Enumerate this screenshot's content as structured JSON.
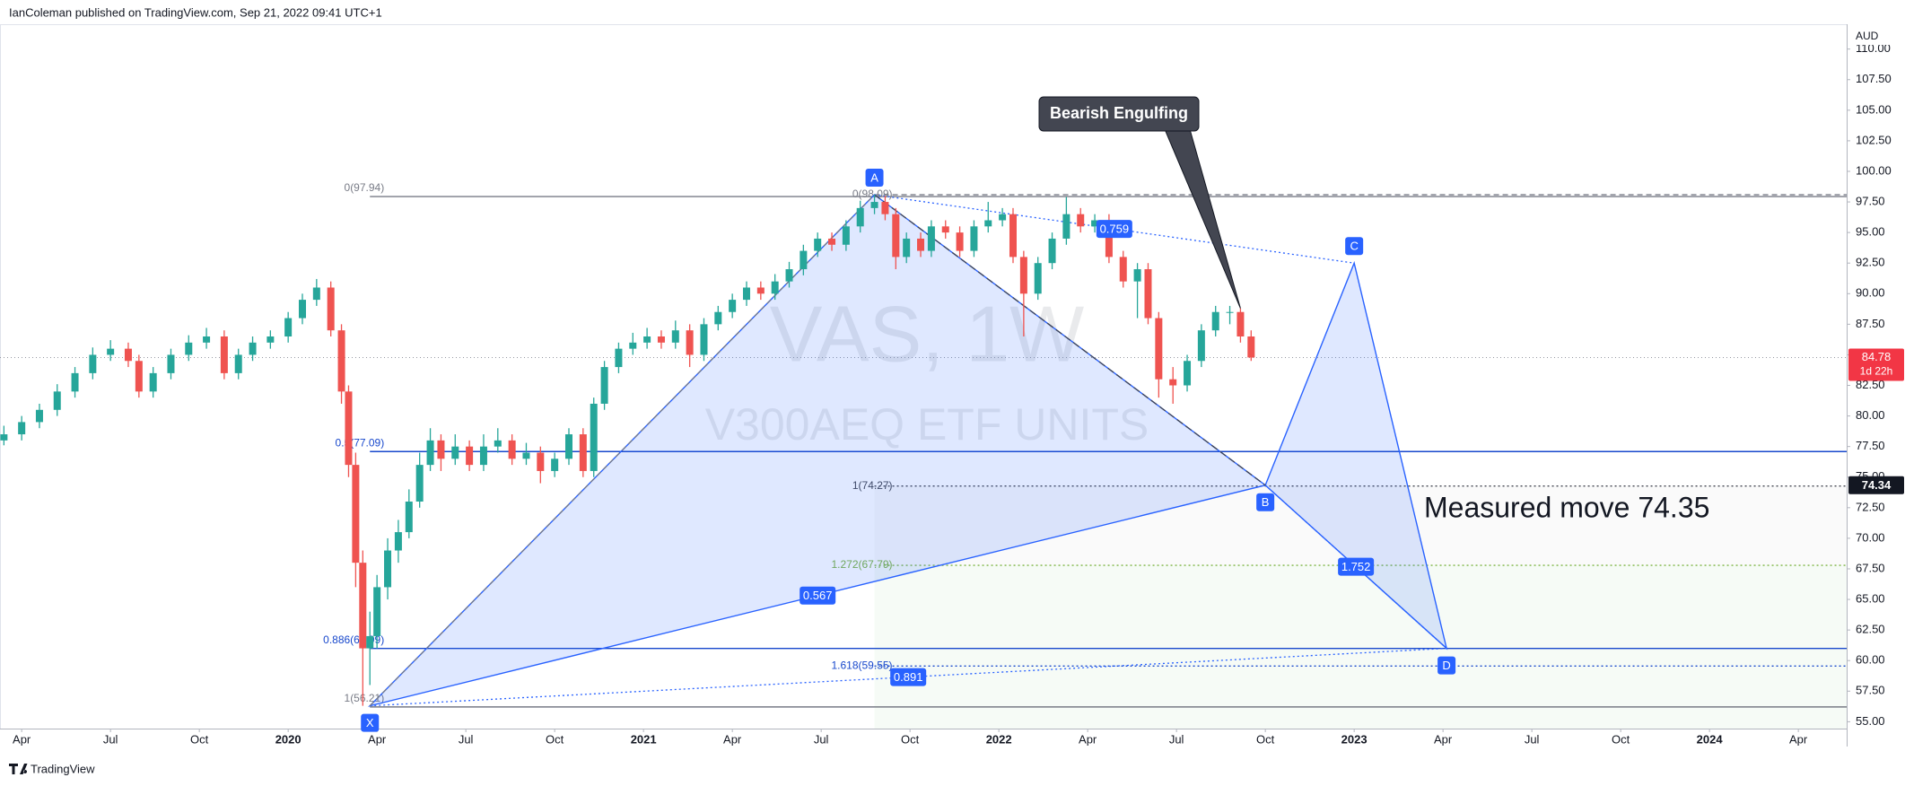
{
  "header": {
    "publisher": "IanColeman published on TradingView.com, Sep 21, 2022 09:41 UTC+1"
  },
  "footer": {
    "brand": "TradingView"
  },
  "chart_data": {
    "type": "candlestick",
    "currency": "AUD",
    "watermark": {
      "symbol": "VAS, 1W",
      "name": "V300AEQ ETF UNITS"
    },
    "colors": {
      "up": "#26a69a",
      "down": "#ef5350",
      "pattern": "#2962ff"
    },
    "grid": false,
    "candles": {
      "x": [
        2019.2,
        2019.25,
        2019.3,
        2019.35,
        2019.4,
        2019.45,
        2019.5,
        2019.55,
        2019.58,
        2019.62,
        2019.67,
        2019.72,
        2019.77,
        2019.82,
        2019.86,
        2019.9,
        2019.95,
        2020.0,
        2020.04,
        2020.08,
        2020.12,
        2020.15,
        2020.17,
        2020.19,
        2020.21,
        2020.23,
        2020.25,
        2020.28,
        2020.31,
        2020.34,
        2020.37,
        2020.4,
        2020.43,
        2020.47,
        2020.51,
        2020.55,
        2020.59,
        2020.63,
        2020.67,
        2020.71,
        2020.75,
        2020.79,
        2020.83,
        2020.86,
        2020.89,
        2020.93,
        2020.97,
        2021.01,
        2021.05,
        2021.09,
        2021.13,
        2021.17,
        2021.21,
        2021.25,
        2021.29,
        2021.33,
        2021.37,
        2021.41,
        2021.45,
        2021.49,
        2021.53,
        2021.57,
        2021.61,
        2021.65,
        2021.68,
        2021.71,
        2021.74,
        2021.78,
        2021.81,
        2021.85,
        2021.89,
        2021.93,
        2021.97,
        2022.01,
        2022.04,
        2022.07,
        2022.11,
        2022.15,
        2022.19,
        2022.23,
        2022.27,
        2022.31,
        2022.35,
        2022.39,
        2022.42,
        2022.45,
        2022.49,
        2022.53,
        2022.57,
        2022.61,
        2022.65,
        2022.68,
        2022.71
      ],
      "open": [
        78,
        78.5,
        79.5,
        80.5,
        82,
        83.5,
        85,
        85.5,
        84.5,
        82,
        83.5,
        85,
        86,
        86.5,
        83.5,
        85,
        86,
        86.5,
        88,
        89.5,
        90.5,
        87,
        82,
        76,
        68,
        61,
        62,
        66,
        69,
        70.5,
        73,
        76,
        78,
        76.5,
        77.5,
        76,
        77.5,
        78,
        76.5,
        77,
        75.5,
        76.5,
        78.5,
        75.5,
        81,
        84,
        85.5,
        86,
        86.5,
        86,
        87,
        85,
        87.5,
        88.5,
        89.5,
        90.5,
        90,
        91,
        92,
        93.5,
        94.5,
        94,
        95.5,
        97,
        97.5,
        96.5,
        93,
        94.5,
        93.5,
        95.5,
        95,
        93.5,
        95.5,
        96,
        96.5,
        93,
        90,
        92.5,
        94.5,
        96.5,
        95.5,
        96,
        93,
        91,
        92,
        88,
        83,
        82.5,
        84.5,
        87,
        88.5,
        88.5,
        86.5
      ],
      "high": [
        79.2,
        80,
        81,
        82.6,
        84,
        85.6,
        86.2,
        86,
        85,
        84,
        85.5,
        86.6,
        87.2,
        87,
        85.5,
        86.5,
        87,
        88.5,
        90,
        91.2,
        91,
        87.5,
        82.5,
        77,
        69,
        64,
        67,
        70,
        71.5,
        74,
        77,
        79,
        78.5,
        78.5,
        78,
        78.5,
        79,
        78.5,
        77.8,
        77.5,
        77,
        79,
        79,
        81.5,
        84.5,
        86,
        86.8,
        87.2,
        87,
        87.8,
        87.5,
        88,
        89,
        90,
        91,
        91,
        91.6,
        92.6,
        94,
        95,
        95,
        96,
        97.6,
        98.09,
        98,
        97,
        95,
        95,
        96,
        96,
        95.5,
        96,
        97.5,
        97,
        97,
        93.5,
        93,
        95,
        97.9,
        97,
        96.5,
        96.5,
        93.5,
        92.5,
        92.5,
        88.5,
        84,
        85,
        87.5,
        89,
        89,
        88.8,
        87
      ],
      "low": [
        77.6,
        78,
        79,
        80,
        81.5,
        83,
        84.5,
        84,
        81.5,
        81.5,
        83,
        84.5,
        85.5,
        83,
        83,
        84.5,
        85.5,
        86,
        87.5,
        89,
        86.5,
        81,
        75,
        66,
        56.3,
        58,
        61,
        65,
        68,
        70,
        72.5,
        75.5,
        75.5,
        76,
        75.5,
        75.5,
        77,
        76,
        76,
        74.5,
        75,
        76,
        75,
        75,
        80.5,
        83.5,
        85,
        85.5,
        85.5,
        85.5,
        84,
        84.5,
        87,
        88,
        89,
        89.5,
        89.5,
        90.5,
        91.5,
        93,
        93.5,
        93.5,
        95,
        96.5,
        96,
        92,
        92.5,
        93,
        93,
        94.5,
        93,
        93,
        95,
        95.5,
        92.5,
        86.5,
        89.5,
        92,
        94,
        95,
        95,
        92.5,
        90.5,
        88,
        87.5,
        81.5,
        81,
        82,
        84,
        86.5,
        87.5,
        86,
        84.5
      ],
      "close": [
        78.5,
        79.5,
        80.5,
        82,
        83.5,
        85,
        85.5,
        84.5,
        82,
        83.5,
        85,
        86,
        86.5,
        83.5,
        85,
        86,
        86.5,
        88,
        89.5,
        90.5,
        87,
        82,
        76,
        68,
        61,
        62,
        66,
        69,
        70.5,
        73,
        76,
        78,
        76.5,
        77.5,
        76,
        77.5,
        78,
        76.5,
        77,
        75.5,
        76.5,
        78.5,
        75.5,
        81,
        84,
        85.5,
        86,
        86.5,
        86,
        87,
        85,
        87.5,
        88.5,
        89.5,
        90.5,
        90,
        91,
        92,
        93.5,
        94.5,
        94,
        95.5,
        97,
        97.5,
        96.5,
        93,
        94.5,
        93.5,
        95.5,
        95,
        93.5,
        95.5,
        96,
        96.5,
        93,
        90,
        92.5,
        94.5,
        96.5,
        95.5,
        96,
        93,
        91,
        92,
        88,
        83,
        82.5,
        84.5,
        87,
        88.5,
        88.5,
        86.5,
        84.78
      ]
    },
    "xlim": [
      2019.189,
      2024.386
    ],
    "xticks": [
      {
        "value": 2019.25,
        "label": "Apr"
      },
      {
        "value": 2019.5,
        "label": "Jul"
      },
      {
        "value": 2019.75,
        "label": "Oct"
      },
      2020,
      {
        "value": 2020.25,
        "label": "Apr"
      },
      {
        "value": 2020.5,
        "label": "Jul"
      },
      {
        "value": 2020.75,
        "label": "Oct"
      },
      2021,
      {
        "value": 2021.25,
        "label": "Apr"
      },
      {
        "value": 2021.5,
        "label": "Jul"
      },
      {
        "value": 2021.75,
        "label": "Oct"
      },
      2022,
      {
        "value": 2022.25,
        "label": "Apr"
      },
      {
        "value": 2022.5,
        "label": "Jul"
      },
      {
        "value": 2022.75,
        "label": "Oct"
      },
      2023,
      {
        "value": 2023.25,
        "label": "Apr"
      },
      {
        "value": 2023.5,
        "label": "Jul"
      },
      {
        "value": 2023.75,
        "label": "Oct"
      },
      2024,
      {
        "value": 2024.25,
        "label": "Apr"
      }
    ],
    "ylim": [
      54.44,
      112.03
    ],
    "yticks": [
      {
        "value": 55,
        "label": "55.00"
      },
      {
        "value": 57.5,
        "label": "57.50"
      },
      {
        "value": 60,
        "label": "60.00"
      },
      {
        "value": 62.5,
        "label": "62.50"
      },
      {
        "value": 65,
        "label": "65.00"
      },
      {
        "value": 67.5,
        "label": "67.50"
      },
      {
        "value": 70,
        "label": "70.00"
      },
      {
        "value": 72.5,
        "label": "72.50"
      },
      {
        "value": 75,
        "label": "75.00"
      },
      {
        "value": 77.5,
        "label": "77.50"
      },
      {
        "value": 80,
        "label": "80.00"
      },
      {
        "value": 82.5,
        "label": "82.50"
      },
      {
        "value": 85,
        "label": "85.00"
      },
      {
        "value": 87.5,
        "label": "87.50"
      },
      {
        "value": 90,
        "label": "90.00"
      },
      {
        "value": 92.5,
        "label": "92.50"
      },
      {
        "value": 95,
        "label": "95.00"
      },
      {
        "value": 97.5,
        "label": "97.50"
      },
      {
        "value": 100,
        "label": "100.00"
      },
      {
        "value": 102.5,
        "label": "102.50"
      },
      {
        "value": 105,
        "label": "105.00"
      },
      {
        "value": 107.5,
        "label": "107.50"
      },
      {
        "value": 110,
        "label": "110.00"
      }
    ],
    "last_price": {
      "value": 84.78,
      "label": "84.78",
      "countdown": "1d 22h"
    },
    "marked_price": {
      "value": 74.34,
      "label": "74.34"
    },
    "pattern": {
      "points": [
        {
          "label": "X",
          "x": 2020.23,
          "y": 56.3
        },
        {
          "label": "A",
          "x": 2021.65,
          "y": 98.09
        },
        {
          "label": "B",
          "x": 2022.75,
          "y": 74.34
        },
        {
          "label": "C",
          "x": 2023.0,
          "y": 92.5
        },
        {
          "label": "D",
          "x": 2023.26,
          "y": 61.0
        }
      ],
      "ratios": [
        0.567,
        0.759,
        1.752,
        0.891
      ]
    },
    "fib_xa": [
      {
        "value": 97.94,
        "label": "0(97.94)",
        "color": "#787b86",
        "style": "solid"
      },
      {
        "value": 77.09,
        "label": "0.5(77.09)",
        "color": "#1848cc",
        "style": "solid"
      },
      {
        "value": 60.99,
        "label": "0.886(60.99)",
        "color": "#1848cc",
        "style": "solid"
      },
      {
        "value": 56.21,
        "label": "1(56.21)",
        "color": "#787b86",
        "style": "solid"
      }
    ],
    "fib_ab": [
      {
        "value": 98.09,
        "label": "0(98.09)",
        "color": "#787b86",
        "style": "dashed"
      },
      {
        "value": 74.27,
        "label": "1(74.27)",
        "color": "#434651",
        "style": "dotted"
      },
      {
        "value": 67.79,
        "label": "1.272(67.79)",
        "color": "#7cb342",
        "style": "dotted"
      },
      {
        "value": 59.55,
        "label": "1.618(59.55)",
        "color": "#1848cc",
        "style": "dotted"
      }
    ],
    "annotations": {
      "callout": "Bearish Engulfing",
      "note": "Measured move 74.35"
    }
  }
}
